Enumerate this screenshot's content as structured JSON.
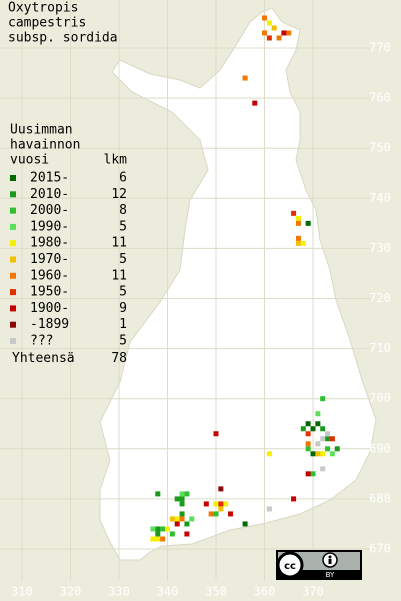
{
  "title": [
    "Oxytropis",
    "campestris",
    "subsp. sordida"
  ],
  "legend": {
    "header": [
      "Uusimman",
      "havainnon",
      "vuosi"
    ],
    "count_header": "lkm",
    "rows": [
      {
        "label": "2015-",
        "count": 6,
        "color": "#006a00",
        "points": [
          [
            369,
            695
          ],
          [
            371,
            695
          ],
          [
            370,
            694
          ],
          [
            370,
            689
          ],
          [
            356,
            675
          ],
          [
            369,
            735
          ]
        ]
      },
      {
        "label": "2010-",
        "count": 12,
        "color": "#1a9a1a",
        "points": [
          [
            368,
            694
          ],
          [
            372,
            694
          ],
          [
            373,
            692
          ],
          [
            375,
            690
          ],
          [
            338,
            681
          ],
          [
            342,
            680
          ],
          [
            343,
            680
          ],
          [
            343,
            679
          ],
          [
            343,
            677
          ],
          [
            344,
            675
          ],
          [
            338,
            674
          ],
          [
            338,
            673
          ]
        ]
      },
      {
        "label": "2000-",
        "count": 8,
        "color": "#2fbf2f",
        "points": [
          [
            372,
            700
          ],
          [
            373,
            690
          ],
          [
            341,
            673
          ],
          [
            370,
            685
          ],
          [
            350,
            677
          ],
          [
            369,
            690
          ],
          [
            344,
            681
          ],
          [
            339,
            674
          ]
        ]
      },
      {
        "label": "1990-",
        "count": 5,
        "color": "#5ce05c",
        "points": [
          [
            371,
            697
          ],
          [
            374,
            689
          ],
          [
            343,
            681
          ],
          [
            337,
            674
          ],
          [
            345,
            676
          ]
        ]
      },
      {
        "label": "1980-",
        "count": 11,
        "color": "#f4f000",
        "points": [
          [
            372,
            689
          ],
          [
            361,
            689
          ],
          [
            342,
            676
          ],
          [
            340,
            674
          ],
          [
            338,
            672
          ],
          [
            350,
            679
          ],
          [
            352,
            679
          ],
          [
            368,
            731
          ],
          [
            361,
            775
          ],
          [
            337,
            672
          ],
          [
            367,
            736
          ]
        ]
      },
      {
        "label": "1970-",
        "count": 5,
        "color": "#f0c000",
        "points": [
          [
            367,
            731
          ],
          [
            351,
            678
          ],
          [
            341,
            676
          ],
          [
            371,
            689
          ],
          [
            362,
            774
          ]
        ]
      },
      {
        "label": "1960-",
        "count": 11,
        "color": "#f07800",
        "points": [
          [
            360,
            776
          ],
          [
            360,
            773
          ],
          [
            363,
            772
          ],
          [
            365,
            773
          ],
          [
            356,
            764
          ],
          [
            367,
            735
          ],
          [
            367,
            732
          ],
          [
            369,
            691
          ],
          [
            343,
            676
          ],
          [
            339,
            672
          ],
          [
            349,
            677
          ]
        ]
      },
      {
        "label": "1950-",
        "count": 5,
        "color": "#e03000",
        "points": [
          [
            361,
            772
          ],
          [
            366,
            737
          ],
          [
            374,
            692
          ],
          [
            351,
            679
          ],
          [
            369,
            693
          ]
        ]
      },
      {
        "label": "1900-",
        "count": 9,
        "color": "#c40000",
        "points": [
          [
            358,
            759
          ],
          [
            364,
            773
          ],
          [
            350,
            693
          ],
          [
            366,
            680
          ],
          [
            369,
            685
          ],
          [
            342,
            675
          ],
          [
            344,
            673
          ],
          [
            348,
            679
          ],
          [
            353,
            677
          ]
        ]
      },
      {
        "label": "-1899",
        "count": 1,
        "color": "#8b0a0a",
        "points": [
          [
            351,
            682
          ]
        ]
      },
      {
        "label": "???",
        "count": 5,
        "color": "#c8c8c8",
        "points": [
          [
            372,
            692
          ],
          [
            372,
            686
          ],
          [
            361,
            678
          ],
          [
            373,
            693
          ],
          [
            371,
            691
          ]
        ]
      }
    ],
    "total_label": "Yhteensä",
    "total": 78
  },
  "axes": {
    "xticks": [
      310,
      320,
      330,
      340,
      350,
      360,
      370
    ],
    "yticks": [
      670,
      680,
      690,
      700,
      710,
      720,
      730,
      740,
      750,
      760,
      770
    ]
  },
  "license": {
    "badge": "BY"
  }
}
